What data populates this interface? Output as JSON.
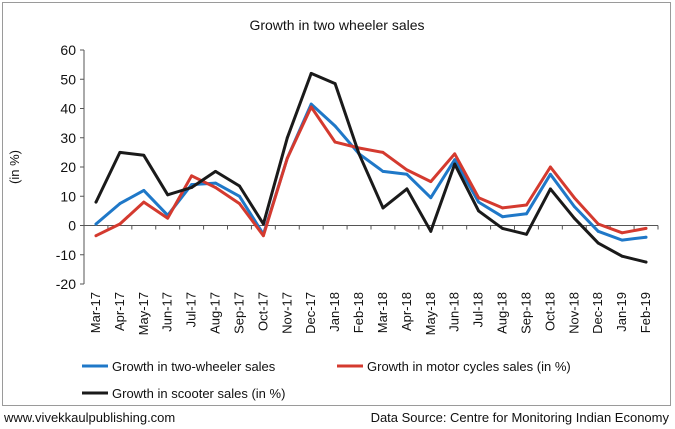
{
  "chart_data": {
    "type": "line",
    "title": "Growth in two wheeler sales",
    "ylabel": "(in %)",
    "xlabel": "",
    "ylim": [
      -20,
      60
    ],
    "yticks": [
      60,
      50,
      40,
      30,
      20,
      10,
      0,
      -10,
      -20
    ],
    "grid": false,
    "legend_position": "bottom",
    "categories": [
      "Mar-17",
      "Apr-17",
      "May-17",
      "Jun-17",
      "Jul-17",
      "Aug-17",
      "Sep-17",
      "Oct-17",
      "Nov-17",
      "Dec-17",
      "Jan-18",
      "Feb-18",
      "Mar-18",
      "Apr-18",
      "May-18",
      "Jun-18",
      "Jul-18",
      "Aug-18",
      "Sep-18",
      "Oct-18",
      "Nov-18",
      "Dec-18",
      "Jan-19",
      "Feb-19"
    ],
    "series": [
      {
        "name": "Growth in two-wheeler sales",
        "color": "#1f78c8",
        "values": [
          0.5,
          7.5,
          12,
          3.5,
          14,
          14.5,
          10,
          -3,
          23,
          41.5,
          34,
          24.5,
          18.5,
          17.5,
          9.5,
          22.5,
          8,
          3,
          4,
          17.5,
          6.5,
          -2,
          -5,
          -4
        ]
      },
      {
        "name": "Growth in motor cycles sales (in %)",
        "color": "#d43a2f",
        "values": [
          -3.5,
          0.5,
          8,
          2.5,
          17,
          13,
          7.5,
          -3.5,
          23,
          40.5,
          28.5,
          26.5,
          25,
          19,
          15,
          24.5,
          9.5,
          6,
          7,
          20,
          9.5,
          0.5,
          -2.5,
          -1
        ]
      },
      {
        "name": "Growth in scooter sales (in %)",
        "color": "#1a1a1a",
        "values": [
          8,
          25,
          24,
          10.5,
          13,
          18.5,
          13.5,
          0.5,
          30,
          52,
          48.5,
          24.5,
          6,
          12.5,
          -2,
          21,
          5,
          -1,
          -3,
          12.5,
          2.5,
          -6,
          -10.5,
          -12.5
        ]
      }
    ]
  },
  "footer": {
    "website": "www.vivekkaulpublishing.com",
    "source": "Data Source: Centre for Monitoring Indian Economy"
  }
}
